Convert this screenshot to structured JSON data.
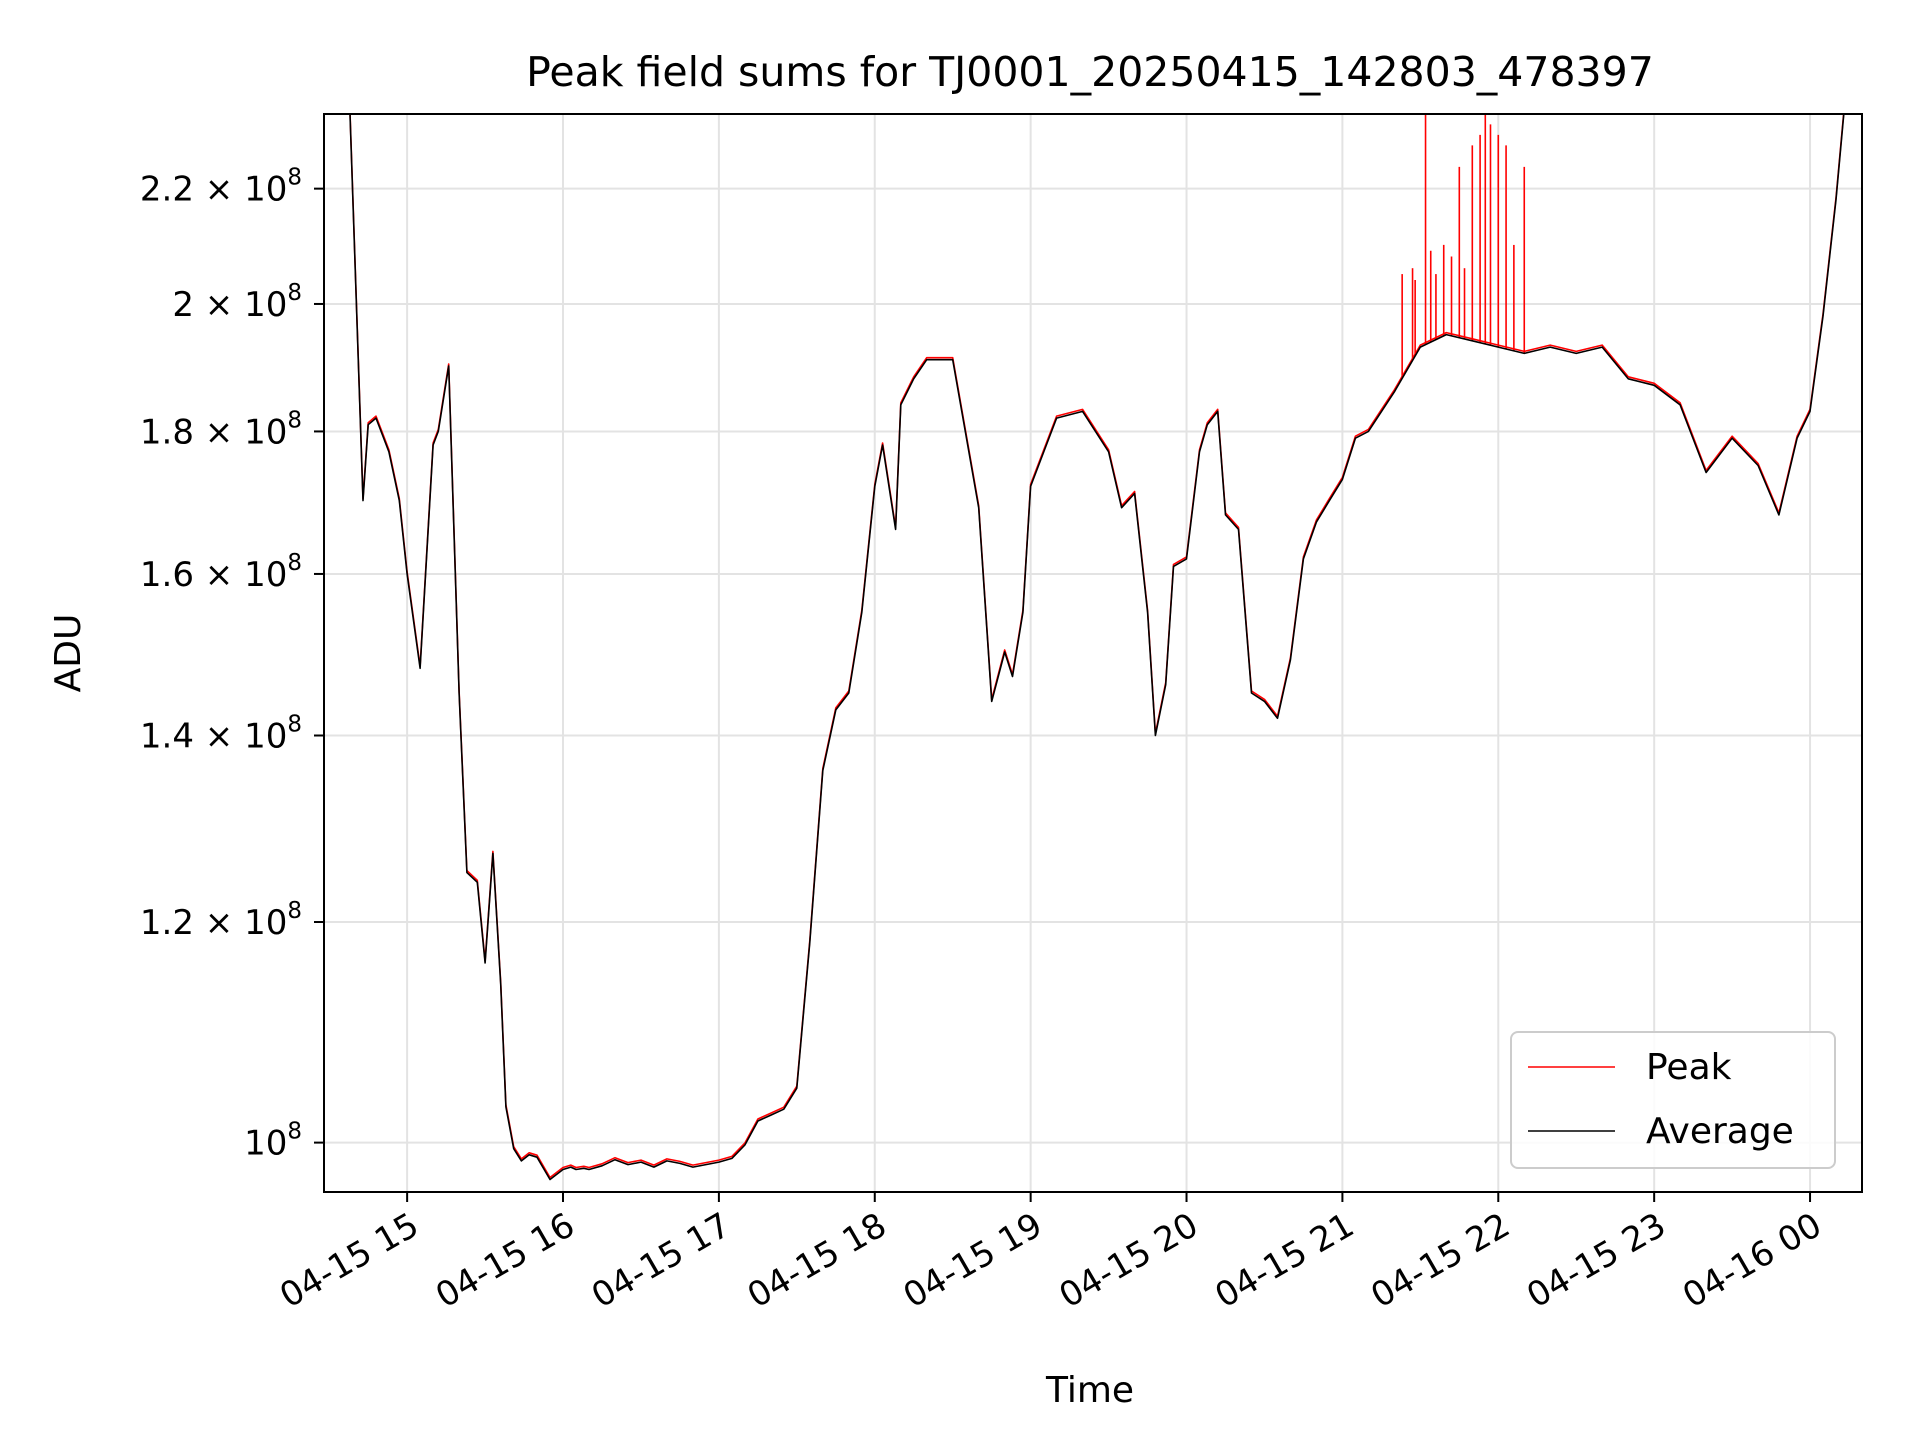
{
  "chart_data": {
    "type": "line",
    "title": "Peak field sums for TJ0001_20250415_142803_478397",
    "xlabel": "Time",
    "ylabel": "ADU",
    "y_scale": "log",
    "grid": true,
    "legend_position": "lower-right",
    "xlim": [
      "2025-04-15 14:28",
      "2025-04-16 00:20"
    ],
    "ylim": [
      96000000,
      234000000
    ],
    "x_ticks": [
      {
        "value": "2025-04-15 15:00",
        "label": "04-15 15"
      },
      {
        "value": "2025-04-15 16:00",
        "label": "04-15 16"
      },
      {
        "value": "2025-04-15 17:00",
        "label": "04-15 17"
      },
      {
        "value": "2025-04-15 18:00",
        "label": "04-15 18"
      },
      {
        "value": "2025-04-15 19:00",
        "label": "04-15 19"
      },
      {
        "value": "2025-04-15 20:00",
        "label": "04-15 20"
      },
      {
        "value": "2025-04-15 21:00",
        "label": "04-15 21"
      },
      {
        "value": "2025-04-15 22:00",
        "label": "04-15 22"
      },
      {
        "value": "2025-04-15 23:00",
        "label": "04-15 23"
      },
      {
        "value": "2025-04-16 00:00",
        "label": "04-16 00"
      }
    ],
    "y_ticks": [
      {
        "value": 100000000,
        "mantissa": "",
        "base": "10",
        "exponent": "8"
      },
      {
        "value": 120000000,
        "mantissa": "1.2 × ",
        "base": "10",
        "exponent": "8"
      },
      {
        "value": 140000000,
        "mantissa": "1.4 × ",
        "base": "10",
        "exponent": "8"
      },
      {
        "value": 160000000,
        "mantissa": "1.6 × ",
        "base": "10",
        "exponent": "8"
      },
      {
        "value": 180000000,
        "mantissa": "1.8 × ",
        "base": "10",
        "exponent": "8"
      },
      {
        "value": 200000000,
        "mantissa": "2 × ",
        "base": "10",
        "exponent": "8"
      },
      {
        "value": 220000000,
        "mantissa": "2.2 × ",
        "base": "10",
        "exponent": "8"
      }
    ],
    "series": [
      {
        "name": "Average",
        "color": "#000000",
        "x": [
          "2025-04-15 14:38",
          "2025-04-15 14:43",
          "2025-04-15 14:45",
          "2025-04-15 14:48",
          "2025-04-15 14:53",
          "2025-04-15 14:57",
          "2025-04-15 15:00",
          "2025-04-15 15:05",
          "2025-04-15 15:10",
          "2025-04-15 15:12",
          "2025-04-15 15:16",
          "2025-04-15 15:20",
          "2025-04-15 15:23",
          "2025-04-15 15:27",
          "2025-04-15 15:30",
          "2025-04-15 15:33",
          "2025-04-15 15:36",
          "2025-04-15 15:38",
          "2025-04-15 15:41",
          "2025-04-15 15:44",
          "2025-04-15 15:47",
          "2025-04-15 15:50",
          "2025-04-15 15:55",
          "2025-04-15 16:00",
          "2025-04-15 16:03",
          "2025-04-15 16:05",
          "2025-04-15 16:08",
          "2025-04-15 16:10",
          "2025-04-15 16:15",
          "2025-04-15 16:20",
          "2025-04-15 16:25",
          "2025-04-15 16:30",
          "2025-04-15 16:35",
          "2025-04-15 16:40",
          "2025-04-15 16:45",
          "2025-04-15 16:50",
          "2025-04-15 16:55",
          "2025-04-15 17:00",
          "2025-04-15 17:05",
          "2025-04-15 17:10",
          "2025-04-15 17:15",
          "2025-04-15 17:20",
          "2025-04-15 17:25",
          "2025-04-15 17:30",
          "2025-04-15 17:35",
          "2025-04-15 17:40",
          "2025-04-15 17:45",
          "2025-04-15 17:50",
          "2025-04-15 17:55",
          "2025-04-15 18:00",
          "2025-04-15 18:03",
          "2025-04-15 18:08",
          "2025-04-15 18:10",
          "2025-04-15 18:15",
          "2025-04-15 18:20",
          "2025-04-15 18:30",
          "2025-04-15 18:40",
          "2025-04-15 18:45",
          "2025-04-15 18:50",
          "2025-04-15 18:53",
          "2025-04-15 18:57",
          "2025-04-15 19:00",
          "2025-04-15 19:10",
          "2025-04-15 19:20",
          "2025-04-15 19:30",
          "2025-04-15 19:35",
          "2025-04-15 19:40",
          "2025-04-15 19:45",
          "2025-04-15 19:48",
          "2025-04-15 19:52",
          "2025-04-15 19:55",
          "2025-04-15 20:00",
          "2025-04-15 20:05",
          "2025-04-15 20:08",
          "2025-04-15 20:12",
          "2025-04-15 20:15",
          "2025-04-15 20:20",
          "2025-04-15 20:25",
          "2025-04-15 20:30",
          "2025-04-15 20:35",
          "2025-04-15 20:40",
          "2025-04-15 20:45",
          "2025-04-15 20:50",
          "2025-04-15 20:55",
          "2025-04-15 21:00",
          "2025-04-15 21:05",
          "2025-04-15 21:10",
          "2025-04-15 21:20",
          "2025-04-15 21:30",
          "2025-04-15 21:40",
          "2025-04-15 21:50",
          "2025-04-15 22:00",
          "2025-04-15 22:10",
          "2025-04-15 22:20",
          "2025-04-15 22:30",
          "2025-04-15 22:40",
          "2025-04-15 22:50",
          "2025-04-15 23:00",
          "2025-04-15 23:10",
          "2025-04-15 23:20",
          "2025-04-15 23:30",
          "2025-04-15 23:40",
          "2025-04-15 23:48",
          "2025-04-15 23:55",
          "2025-04-16 00:00",
          "2025-04-16 00:05",
          "2025-04-16 00:10",
          "2025-04-16 00:13"
        ],
        "values": [
          234000000,
          170000000,
          181000000,
          182000000,
          177000000,
          170000000,
          160000000,
          148000000,
          178000000,
          180000000,
          190000000,
          145000000,
          125000000,
          124000000,
          116000000,
          127000000,
          114000000,
          103000000,
          99500000,
          98500000,
          99000000,
          98800000,
          97000000,
          97800000,
          98000000,
          97800000,
          97900000,
          97800000,
          98100000,
          98600000,
          98200000,
          98400000,
          98000000,
          98500000,
          98300000,
          98000000,
          98200000,
          98400000,
          98700000,
          99800000,
          101800000,
          102300000,
          102800000,
          104600000,
          118000000,
          136000000,
          143000000,
          145000000,
          155000000,
          172000000,
          178000000,
          166000000,
          184000000,
          188000000,
          191000000,
          191000000,
          169000000,
          144000000,
          150000000,
          147000000,
          155000000,
          172000000,
          182000000,
          183000000,
          177000000,
          169000000,
          171000000,
          155000000,
          140000000,
          146000000,
          161000000,
          162000000,
          177000000,
          181000000,
          183000000,
          168000000,
          166000000,
          145000000,
          144000000,
          142000000,
          149000000,
          162000000,
          167000000,
          170000000,
          173000000,
          179000000,
          180000000,
          186000000,
          193000000,
          195000000,
          194000000,
          193000000,
          192000000,
          193000000,
          192000000,
          193000000,
          188000000,
          187000000,
          184000000,
          174000000,
          179000000,
          175000000,
          168000000,
          179000000,
          183000000,
          198000000,
          218000000,
          234000000
        ]
      },
      {
        "name": "Peak",
        "color": "#ff0000",
        "spikes": [
          {
            "x": "2025-04-15 21:23",
            "value": 205000000
          },
          {
            "x": "2025-04-15 21:27",
            "value": 206000000
          },
          {
            "x": "2025-04-15 21:28",
            "value": 204000000
          },
          {
            "x": "2025-04-15 21:32",
            "value": 234000000
          },
          {
            "x": "2025-04-15 21:34",
            "value": 209000000
          },
          {
            "x": "2025-04-15 21:36",
            "value": 205000000
          },
          {
            "x": "2025-04-15 21:39",
            "value": 210000000
          },
          {
            "x": "2025-04-15 21:42",
            "value": 208000000
          },
          {
            "x": "2025-04-15 21:45",
            "value": 224000000
          },
          {
            "x": "2025-04-15 21:47",
            "value": 206000000
          },
          {
            "x": "2025-04-15 21:50",
            "value": 228000000
          },
          {
            "x": "2025-04-15 21:53",
            "value": 230000000
          },
          {
            "x": "2025-04-15 21:55",
            "value": 234000000
          },
          {
            "x": "2025-04-15 21:57",
            "value": 232000000
          },
          {
            "x": "2025-04-15 22:00",
            "value": 230000000
          },
          {
            "x": "2025-04-15 22:03",
            "value": 228000000
          },
          {
            "x": "2025-04-15 22:06",
            "value": 210000000
          },
          {
            "x": "2025-04-15 22:10",
            "value": 224000000
          }
        ]
      }
    ]
  }
}
